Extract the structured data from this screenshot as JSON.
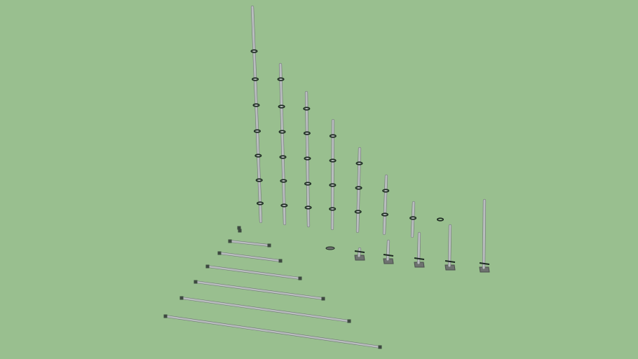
{
  "viewport": {
    "background_color": "#99bf8f"
  },
  "parts": {
    "tube_color": "#b9bdbf",
    "tube_edge_color": "#6f7475",
    "ring_color": "#1d2a22",
    "base_plate_color": "#6e7270"
  }
}
